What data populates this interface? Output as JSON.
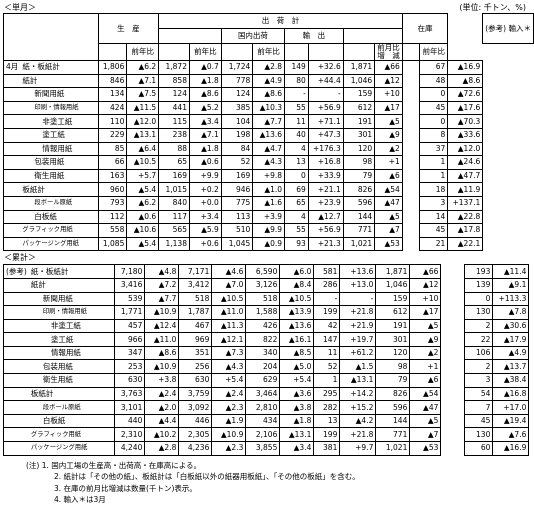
{
  "header": {
    "monthly_title": "＜単月＞",
    "unit": "(単位: 千トン、%)"
  },
  "columns": {
    "production": "生　産",
    "shipments": "出　荷　計",
    "domestic": "国内出荷",
    "export": "輸　出",
    "inventory": "在庫",
    "imports": "(参考) 輸入＊",
    "yoy": "前年比",
    "mom": "前月比 増　減"
  },
  "monthly": {
    "period": "4月",
    "rows": [
      {
        "label": "紙・板紙計",
        "cells": [
          "1,806",
          "▲6.2",
          "1,872",
          "▲0.7",
          "1,724",
          "▲2.8",
          "149",
          "+32.6",
          "1,871",
          "▲66",
          "67",
          "▲16.9"
        ]
      },
      {
        "label": "紙計",
        "cells": [
          "846",
          "▲7.1",
          "858",
          "▲1.8",
          "778",
          "▲4.9",
          "80",
          "+44.4",
          "1,046",
          "▲12",
          "48",
          "▲8.6"
        ]
      },
      {
        "label": "新聞用紙",
        "cells": [
          "134",
          "▲7.5",
          "124",
          "▲8.6",
          "124",
          "▲8.6",
          "-",
          "-",
          "159",
          "+10",
          "0",
          "▲72.6"
        ]
      },
      {
        "label": "印刷・情報用紙",
        "cells": [
          "424",
          "▲11.5",
          "441",
          "▲5.2",
          "385",
          "▲10.3",
          "55",
          "+56.9",
          "612",
          "▲17",
          "45",
          "▲17.6"
        ]
      },
      {
        "label": "非塗工紙",
        "cells": [
          "110",
          "▲12.0",
          "115",
          "▲3.4",
          "104",
          "▲7.7",
          "11",
          "+71.1",
          "191",
          "▲5",
          "0",
          "▲70.3"
        ]
      },
      {
        "label": "塗工紙",
        "cells": [
          "229",
          "▲13.1",
          "238",
          "▲7.1",
          "198",
          "▲13.6",
          "40",
          "+47.3",
          "301",
          "▲9",
          "8",
          "▲33.6"
        ]
      },
      {
        "label": "情報用紙",
        "cells": [
          "85",
          "▲6.4",
          "88",
          "▲1.8",
          "84",
          "▲4.7",
          "4",
          "+176.3",
          "120",
          "▲2",
          "37",
          "▲12.0"
        ]
      },
      {
        "label": "包装用紙",
        "cells": [
          "66",
          "▲10.5",
          "65",
          "▲0.6",
          "52",
          "▲4.3",
          "13",
          "+16.8",
          "98",
          "+1",
          "1",
          "▲24.6"
        ]
      },
      {
        "label": "衛生用紙",
        "cells": [
          "163",
          "+5.7",
          "169",
          "+9.9",
          "169",
          "+9.8",
          "0",
          "+33.9",
          "79",
          "▲6",
          "1",
          "▲47.7"
        ]
      },
      {
        "label": "板紙計",
        "cells": [
          "960",
          "▲5.4",
          "1,015",
          "+0.2",
          "946",
          "▲1.0",
          "69",
          "+21.1",
          "826",
          "▲54",
          "18",
          "▲11.9"
        ]
      },
      {
        "label": "段ボール原紙",
        "cells": [
          "793",
          "▲6.2",
          "840",
          "+0.0",
          "775",
          "▲1.6",
          "65",
          "+23.9",
          "596",
          "▲47",
          "3",
          "+137.1"
        ]
      },
      {
        "label": "白板紙",
        "cells": [
          "112",
          "▲0.6",
          "117",
          "+3.4",
          "113",
          "+3.9",
          "4",
          "▲12.7",
          "144",
          "▲5",
          "14",
          "▲22.8"
        ]
      },
      {
        "label": "グラフィック用紙",
        "cells": [
          "558",
          "▲10.6",
          "565",
          "▲5.9",
          "510",
          "▲9.9",
          "55",
          "+56.9",
          "771",
          "▲7",
          "45",
          "▲17.8"
        ]
      },
      {
        "label": "パッケージング用紙",
        "cells": [
          "1,085",
          "▲5.4",
          "1,138",
          "+0.6",
          "1,045",
          "▲0.9",
          "93",
          "+21.3",
          "1,021",
          "▲53",
          "21",
          "▲22.1"
        ]
      }
    ]
  },
  "cumulative": {
    "title": "＜累計＞",
    "period": "(参考)",
    "rows": [
      {
        "label": "紙・板紙計",
        "cells": [
          "7,180",
          "▲4.8",
          "7,171",
          "▲4.6",
          "6,590",
          "▲6.0",
          "581",
          "+13.6",
          "1,871",
          "▲66",
          "193",
          "▲11.4"
        ]
      },
      {
        "label": "紙計",
        "cells": [
          "3,416",
          "▲7.2",
          "3,412",
          "▲7.0",
          "3,126",
          "▲8.4",
          "286",
          "+13.0",
          "1,046",
          "▲12",
          "139",
          "▲9.1"
        ]
      },
      {
        "label": "新聞用紙",
        "cells": [
          "539",
          "▲7.7",
          "518",
          "▲10.5",
          "518",
          "▲10.5",
          "-",
          "-",
          "159",
          "+10",
          "0",
          "+113.3"
        ]
      },
      {
        "label": "印刷・情報用紙",
        "cells": [
          "1,771",
          "▲10.9",
          "1,787",
          "▲11.0",
          "1,588",
          "▲13.9",
          "199",
          "+21.8",
          "612",
          "▲17",
          "130",
          "▲7.8"
        ]
      },
      {
        "label": "非塗工紙",
        "cells": [
          "457",
          "▲12.4",
          "467",
          "▲11.3",
          "426",
          "▲13.6",
          "42",
          "+21.9",
          "191",
          "▲5",
          "2",
          "▲30.6"
        ]
      },
      {
        "label": "塗工紙",
        "cells": [
          "966",
          "▲11.0",
          "969",
          "▲12.1",
          "822",
          "▲16.1",
          "147",
          "+19.7",
          "301",
          "▲9",
          "22",
          "▲17.9"
        ]
      },
      {
        "label": "情報用紙",
        "cells": [
          "347",
          "▲8.6",
          "351",
          "▲7.3",
          "340",
          "▲8.5",
          "11",
          "+61.2",
          "120",
          "▲2",
          "106",
          "▲4.9"
        ]
      },
      {
        "label": "包装用紙",
        "cells": [
          "253",
          "▲10.9",
          "256",
          "▲4.3",
          "204",
          "▲5.0",
          "52",
          "▲1.5",
          "98",
          "+1",
          "2",
          "▲13.7"
        ]
      },
      {
        "label": "衛生用紙",
        "cells": [
          "630",
          "+3.8",
          "630",
          "+5.4",
          "629",
          "+5.4",
          "1",
          "▲13.1",
          "79",
          "▲6",
          "3",
          "▲38.4"
        ]
      },
      {
        "label": "板紙計",
        "cells": [
          "3,763",
          "▲2.4",
          "3,759",
          "▲2.4",
          "3,464",
          "▲3.6",
          "295",
          "+14.2",
          "826",
          "▲54",
          "54",
          "▲16.8"
        ]
      },
      {
        "label": "段ボール原紙",
        "cells": [
          "3,101",
          "▲2.0",
          "3,092",
          "▲2.3",
          "2,810",
          "▲3.8",
          "282",
          "+15.2",
          "596",
          "▲47",
          "7",
          "+17.0"
        ]
      },
      {
        "label": "白板紙",
        "cells": [
          "440",
          "▲4.4",
          "446",
          "▲1.9",
          "434",
          "▲1.8",
          "13",
          "▲4.2",
          "144",
          "▲5",
          "45",
          "▲19.4"
        ]
      },
      {
        "label": "グラフィック用紙",
        "cells": [
          "2,310",
          "▲10.2",
          "2,305",
          "▲10.9",
          "2,106",
          "▲13.1",
          "199",
          "+21.8",
          "771",
          "▲7",
          "130",
          "▲7.6"
        ]
      },
      {
        "label": "パッケージング用紙",
        "cells": [
          "4,240",
          "▲2.8",
          "4,236",
          "▲2.3",
          "3,855",
          "▲3.4",
          "381",
          "+9.7",
          "1,021",
          "▲53",
          "60",
          "▲16.9"
        ]
      }
    ]
  },
  "notes": [
    "(注) 1. 国内工場の生産高・出荷高・在庫高による。",
    "2. 紙計は「その他の紙」、板紙計は「白板紙以外の紙器用板紙」、「その他の板紙」を含む。",
    "3. 在庫の前月比増減は数量(千トン)表示。",
    "4. 輸入＊は3月"
  ]
}
